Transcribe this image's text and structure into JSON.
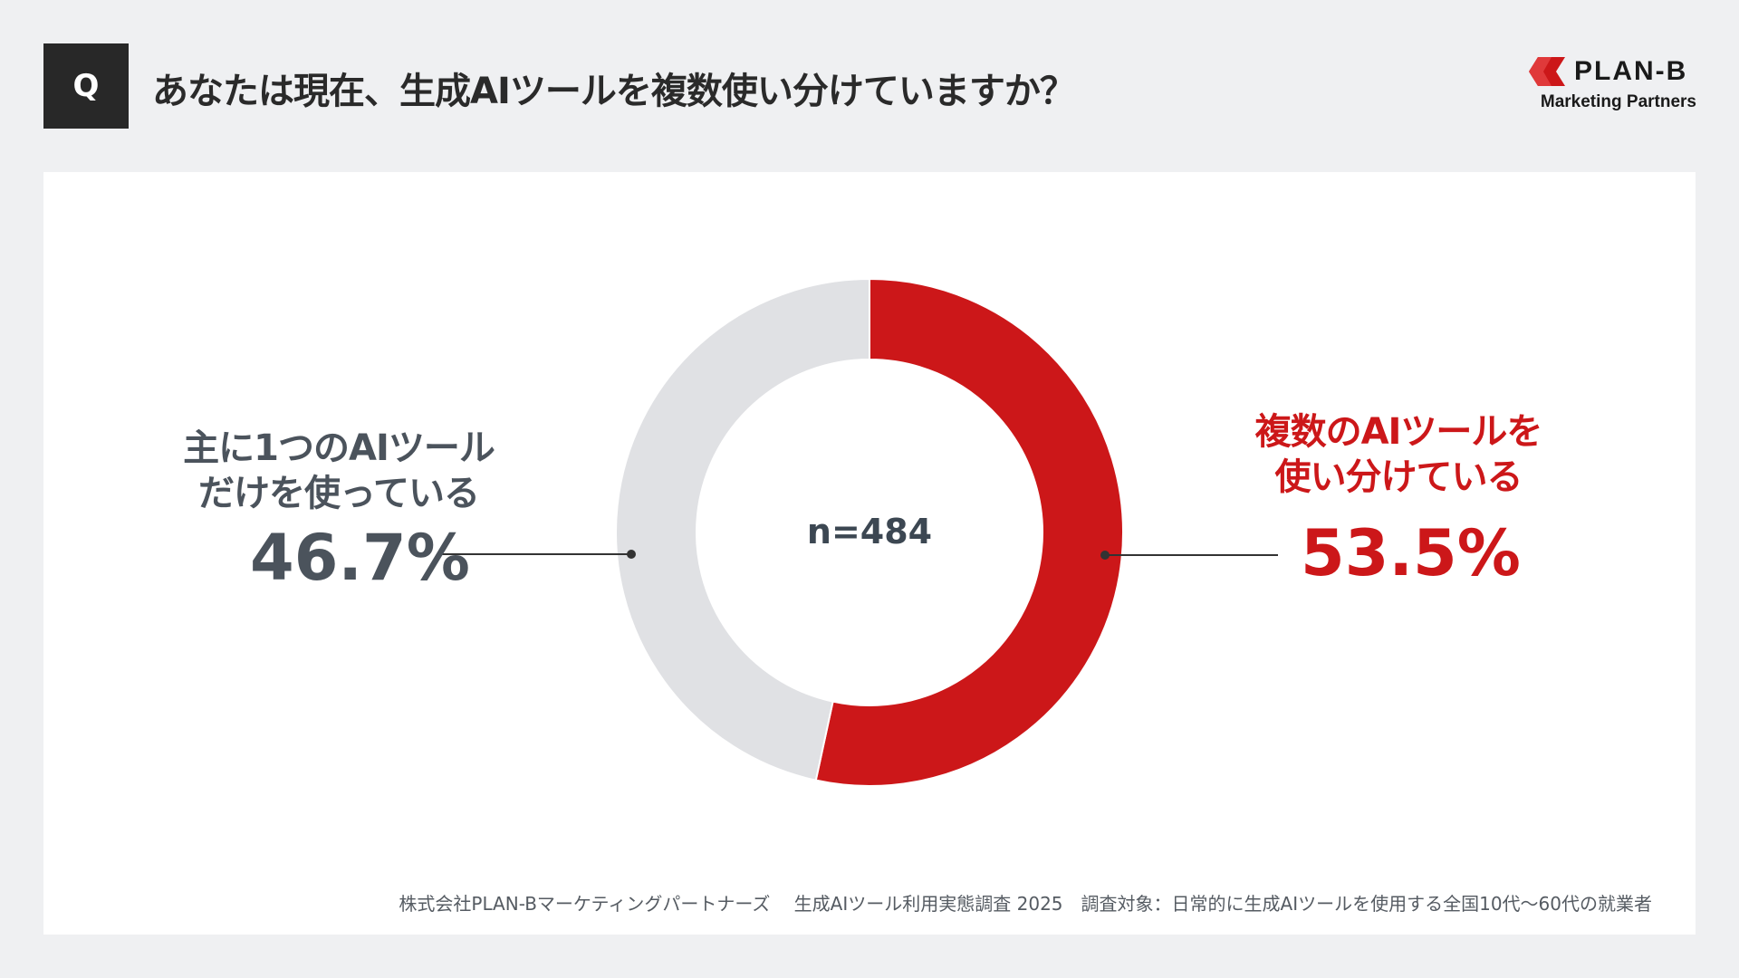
{
  "header": {
    "q_label": "Q",
    "title": "あなたは現在、生成AIツールを複数使い分けていますか？"
  },
  "logo": {
    "name": "PLAN-B",
    "sub": "Marketing Partners"
  },
  "colors": {
    "accent": "#cc1719",
    "secondary": "#e0e1e4",
    "text_gray": "#4b535c",
    "background": "#eff0f2"
  },
  "chart_data": {
    "type": "pie",
    "style": "donut",
    "center_label": "n=484",
    "slices": [
      {
        "label": "複数のAIツールを使い分けている",
        "label_lines": [
          "複数のAIツールを",
          "使い分けている"
        ],
        "value": 53.5,
        "value_label": "53.5%",
        "color": "#cc1719"
      },
      {
        "label": "主に1つのAIツールだけを使っている",
        "label_lines": [
          "主に1つのAIツール",
          "だけを使っている"
        ],
        "value": 46.7,
        "value_label": "46.7%",
        "color": "#e0e1e4"
      }
    ]
  },
  "footer": {
    "text": "株式会社PLAN-Bマーケティングパートナーズ　 生成AIツール利用実態調査 2025　調査対象：日常的に生成AIツールを使用する全国10代〜60代の就業者"
  }
}
